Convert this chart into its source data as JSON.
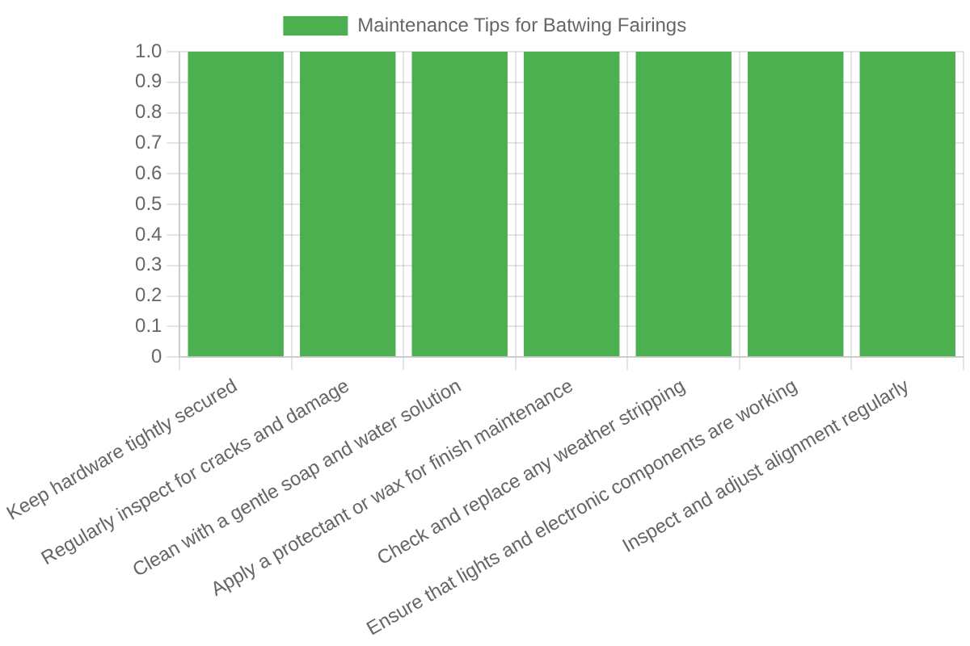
{
  "chart_data": {
    "type": "bar",
    "categories": [
      "Keep hardware tightly secured",
      "Regularly inspect for cracks and damage",
      "Clean with a gentle soap and water solution",
      "Apply a protectant or wax for finish maintenance",
      "Check and replace any weather stripping",
      "Ensure that lights and electronic components are working",
      "Inspect and adjust alignment regularly"
    ],
    "series": [
      {
        "name": "Maintenance Tips for Batwing Fairings",
        "color": "#4caf50",
        "values": [
          1,
          1,
          1,
          1,
          1,
          1,
          1
        ]
      }
    ],
    "ylim": [
      0,
      1
    ],
    "yticks": [
      0,
      0.1,
      0.2,
      0.3,
      0.4,
      0.5,
      0.6,
      0.7,
      0.8,
      0.9,
      {
        "value": 1,
        "label": "1.0"
      }
    ],
    "grid": true,
    "legend": "top"
  }
}
